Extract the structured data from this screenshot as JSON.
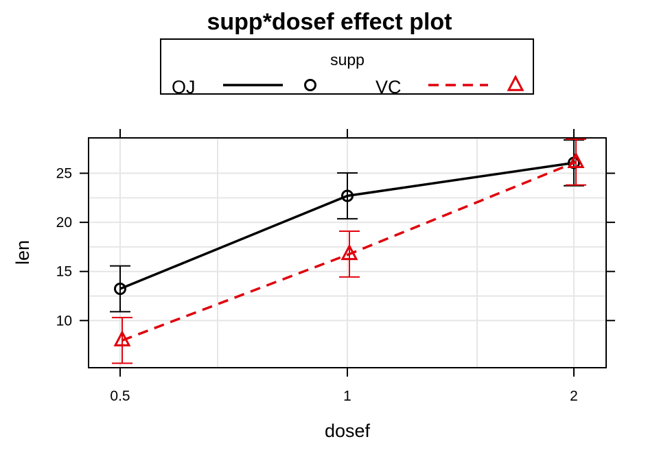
{
  "chart_data": {
    "type": "line",
    "title": "supp*dosef effect plot",
    "xlabel": "dosef",
    "ylabel": "len",
    "categories": [
      "0.5",
      "1",
      "2"
    ],
    "y_ticks": [
      10,
      15,
      20,
      25
    ],
    "ylim": [
      5.2,
      28.6
    ],
    "grid": true,
    "legend": {
      "title": "supp",
      "placement": "top"
    },
    "series": [
      {
        "name": "OJ",
        "values": [
          13.23,
          22.7,
          26.06
        ],
        "lower": [
          10.9,
          20.37,
          23.73
        ],
        "upper": [
          15.56,
          25.03,
          28.39
        ],
        "color": "#000000",
        "line": "solid",
        "marker": "circle"
      },
      {
        "name": "VC",
        "values": [
          7.98,
          16.77,
          26.14
        ],
        "lower": [
          5.65,
          14.44,
          23.81
        ],
        "upper": [
          10.31,
          19.1,
          28.47
        ],
        "color": "#e0000b",
        "line": "dashed",
        "marker": "triangle"
      }
    ]
  }
}
